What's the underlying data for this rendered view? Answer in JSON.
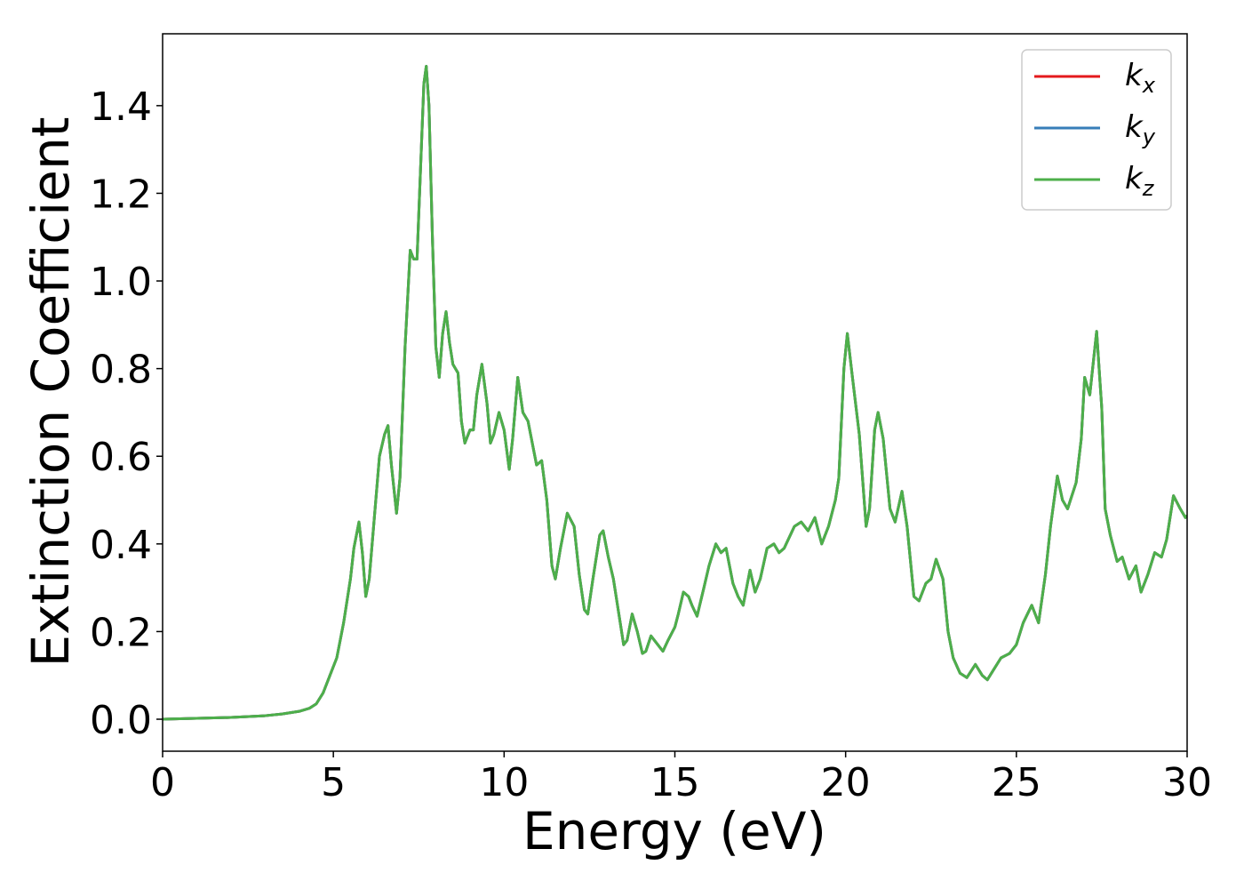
{
  "chart_data": {
    "type": "line",
    "xlabel": "Energy (eV)",
    "ylabel": "Extinction Coefficient",
    "x": [
      0,
      1,
      2,
      3,
      3.5,
      4,
      4.3,
      4.5,
      4.7,
      4.9,
      5.1,
      5.3,
      5.5,
      5.6,
      5.75,
      5.85,
      5.95,
      6.05,
      6.2,
      6.35,
      6.5,
      6.6,
      6.7,
      6.85,
      6.95,
      7.1,
      7.25,
      7.35,
      7.45,
      7.55,
      7.65,
      7.72,
      7.8,
      7.9,
      8.0,
      8.1,
      8.2,
      8.3,
      8.4,
      8.5,
      8.65,
      8.75,
      8.85,
      9.0,
      9.1,
      9.2,
      9.35,
      9.5,
      9.6,
      9.7,
      9.85,
      10.0,
      10.15,
      10.25,
      10.4,
      10.55,
      10.7,
      10.85,
      10.95,
      11.1,
      11.25,
      11.4,
      11.5,
      11.65,
      11.85,
      12.05,
      12.2,
      12.35,
      12.45,
      12.6,
      12.8,
      12.9,
      13.05,
      13.2,
      13.4,
      13.5,
      13.6,
      13.75,
      13.9,
      14.05,
      14.15,
      14.3,
      14.5,
      14.65,
      14.8,
      15.0,
      15.1,
      15.25,
      15.4,
      15.5,
      15.65,
      15.85,
      16.0,
      16.2,
      16.35,
      16.5,
      16.7,
      16.85,
      17.0,
      17.2,
      17.35,
      17.5,
      17.7,
      17.9,
      18.05,
      18.2,
      18.5,
      18.7,
      18.8,
      18.9,
      19.1,
      19.3,
      19.5,
      19.7,
      19.8,
      19.95,
      20.05,
      20.2,
      20.4,
      20.6,
      20.7,
      20.85,
      20.95,
      21.1,
      21.3,
      21.45,
      21.65,
      21.8,
      22.0,
      22.15,
      22.35,
      22.5,
      22.65,
      22.85,
      23.0,
      23.15,
      23.35,
      23.55,
      23.8,
      24.0,
      24.15,
      24.35,
      24.55,
      24.8,
      25.0,
      25.2,
      25.45,
      25.65,
      25.85,
      26.0,
      26.2,
      26.35,
      26.5,
      26.75,
      26.9,
      27.0,
      27.15,
      27.35,
      27.5,
      27.6,
      27.75,
      27.95,
      28.1,
      28.3,
      28.5,
      28.65,
      28.85,
      29.05,
      29.25,
      29.4,
      29.6,
      29.8,
      29.95,
      30
    ],
    "series": [
      {
        "name": "kx",
        "color": "#e41a1c",
        "values": [
          0,
          0.002,
          0.004,
          0.008,
          0.012,
          0.018,
          0.025,
          0.035,
          0.06,
          0.1,
          0.14,
          0.22,
          0.32,
          0.39,
          0.45,
          0.38,
          0.28,
          0.32,
          0.46,
          0.6,
          0.65,
          0.67,
          0.58,
          0.47,
          0.55,
          0.85,
          1.07,
          1.05,
          1.05,
          1.25,
          1.45,
          1.49,
          1.4,
          1.1,
          0.85,
          0.78,
          0.88,
          0.93,
          0.86,
          0.81,
          0.79,
          0.68,
          0.63,
          0.66,
          0.66,
          0.74,
          0.81,
          0.72,
          0.63,
          0.65,
          0.7,
          0.66,
          0.57,
          0.64,
          0.78,
          0.7,
          0.68,
          0.62,
          0.58,
          0.59,
          0.5,
          0.35,
          0.32,
          0.39,
          0.47,
          0.44,
          0.33,
          0.25,
          0.24,
          0.32,
          0.42,
          0.43,
          0.37,
          0.32,
          0.22,
          0.17,
          0.18,
          0.24,
          0.2,
          0.15,
          0.155,
          0.19,
          0.17,
          0.155,
          0.18,
          0.21,
          0.24,
          0.29,
          0.28,
          0.26,
          0.235,
          0.3,
          0.35,
          0.4,
          0.38,
          0.39,
          0.31,
          0.28,
          0.26,
          0.34,
          0.29,
          0.32,
          0.39,
          0.4,
          0.38,
          0.39,
          0.44,
          0.45,
          0.44,
          0.43,
          0.46,
          0.4,
          0.44,
          0.5,
          0.55,
          0.8,
          0.88,
          0.78,
          0.65,
          0.44,
          0.48,
          0.66,
          0.7,
          0.64,
          0.48,
          0.45,
          0.52,
          0.44,
          0.28,
          0.27,
          0.31,
          0.32,
          0.365,
          0.32,
          0.2,
          0.14,
          0.105,
          0.095,
          0.125,
          0.1,
          0.09,
          0.115,
          0.14,
          0.15,
          0.17,
          0.22,
          0.26,
          0.22,
          0.33,
          0.44,
          0.555,
          0.5,
          0.48,
          0.54,
          0.64,
          0.78,
          0.74,
          0.885,
          0.71,
          0.48,
          0.42,
          0.36,
          0.37,
          0.32,
          0.35,
          0.29,
          0.33,
          0.38,
          0.37,
          0.41,
          0.51,
          0.48,
          0.46,
          0.465
        ]
      },
      {
        "name": "ky",
        "color": "#377eb8",
        "values": [
          0,
          0.002,
          0.004,
          0.008,
          0.012,
          0.018,
          0.025,
          0.035,
          0.06,
          0.1,
          0.14,
          0.22,
          0.32,
          0.39,
          0.45,
          0.38,
          0.28,
          0.32,
          0.46,
          0.6,
          0.65,
          0.67,
          0.58,
          0.47,
          0.55,
          0.85,
          1.07,
          1.05,
          1.05,
          1.25,
          1.45,
          1.49,
          1.4,
          1.1,
          0.85,
          0.78,
          0.88,
          0.93,
          0.86,
          0.81,
          0.79,
          0.68,
          0.63,
          0.66,
          0.66,
          0.74,
          0.81,
          0.72,
          0.63,
          0.65,
          0.7,
          0.66,
          0.57,
          0.64,
          0.78,
          0.7,
          0.68,
          0.62,
          0.58,
          0.59,
          0.5,
          0.35,
          0.32,
          0.39,
          0.47,
          0.44,
          0.33,
          0.25,
          0.24,
          0.32,
          0.42,
          0.43,
          0.37,
          0.32,
          0.22,
          0.17,
          0.18,
          0.24,
          0.2,
          0.15,
          0.155,
          0.19,
          0.17,
          0.155,
          0.18,
          0.21,
          0.24,
          0.29,
          0.28,
          0.26,
          0.235,
          0.3,
          0.35,
          0.4,
          0.38,
          0.39,
          0.31,
          0.28,
          0.26,
          0.34,
          0.29,
          0.32,
          0.39,
          0.4,
          0.38,
          0.39,
          0.44,
          0.45,
          0.44,
          0.43,
          0.46,
          0.4,
          0.44,
          0.5,
          0.55,
          0.8,
          0.88,
          0.78,
          0.65,
          0.44,
          0.48,
          0.66,
          0.7,
          0.64,
          0.48,
          0.45,
          0.52,
          0.44,
          0.28,
          0.27,
          0.31,
          0.32,
          0.365,
          0.32,
          0.2,
          0.14,
          0.105,
          0.095,
          0.125,
          0.1,
          0.09,
          0.115,
          0.14,
          0.15,
          0.17,
          0.22,
          0.26,
          0.22,
          0.33,
          0.44,
          0.555,
          0.5,
          0.48,
          0.54,
          0.64,
          0.78,
          0.74,
          0.885,
          0.71,
          0.48,
          0.42,
          0.36,
          0.37,
          0.32,
          0.35,
          0.29,
          0.33,
          0.38,
          0.37,
          0.41,
          0.51,
          0.48,
          0.46,
          0.465
        ]
      },
      {
        "name": "kz",
        "color": "#4daf4a",
        "values": [
          0,
          0.002,
          0.004,
          0.008,
          0.012,
          0.018,
          0.025,
          0.035,
          0.06,
          0.1,
          0.14,
          0.22,
          0.32,
          0.39,
          0.45,
          0.38,
          0.28,
          0.32,
          0.46,
          0.6,
          0.65,
          0.67,
          0.58,
          0.47,
          0.55,
          0.85,
          1.07,
          1.05,
          1.05,
          1.25,
          1.45,
          1.49,
          1.4,
          1.1,
          0.85,
          0.78,
          0.88,
          0.93,
          0.86,
          0.81,
          0.79,
          0.68,
          0.63,
          0.66,
          0.66,
          0.74,
          0.81,
          0.72,
          0.63,
          0.65,
          0.7,
          0.66,
          0.57,
          0.64,
          0.78,
          0.7,
          0.68,
          0.62,
          0.58,
          0.59,
          0.5,
          0.35,
          0.32,
          0.39,
          0.47,
          0.44,
          0.33,
          0.25,
          0.24,
          0.32,
          0.42,
          0.43,
          0.37,
          0.32,
          0.22,
          0.17,
          0.18,
          0.24,
          0.2,
          0.15,
          0.155,
          0.19,
          0.17,
          0.155,
          0.18,
          0.21,
          0.24,
          0.29,
          0.28,
          0.26,
          0.235,
          0.3,
          0.35,
          0.4,
          0.38,
          0.39,
          0.31,
          0.28,
          0.26,
          0.34,
          0.29,
          0.32,
          0.39,
          0.4,
          0.38,
          0.39,
          0.44,
          0.45,
          0.44,
          0.43,
          0.46,
          0.4,
          0.44,
          0.5,
          0.55,
          0.8,
          0.88,
          0.78,
          0.65,
          0.44,
          0.48,
          0.66,
          0.7,
          0.64,
          0.48,
          0.45,
          0.52,
          0.44,
          0.28,
          0.27,
          0.31,
          0.32,
          0.365,
          0.32,
          0.2,
          0.14,
          0.105,
          0.095,
          0.125,
          0.1,
          0.09,
          0.115,
          0.14,
          0.15,
          0.17,
          0.22,
          0.26,
          0.22,
          0.33,
          0.44,
          0.555,
          0.5,
          0.48,
          0.54,
          0.64,
          0.78,
          0.74,
          0.885,
          0.71,
          0.48,
          0.42,
          0.36,
          0.37,
          0.32,
          0.35,
          0.29,
          0.33,
          0.38,
          0.37,
          0.41,
          0.51,
          0.48,
          0.46,
          0.465
        ]
      }
    ],
    "xlim": [
      0,
      30
    ],
    "xticks": [
      0,
      5,
      10,
      15,
      20,
      25,
      30
    ],
    "ylim": [
      -0.073,
      1.564
    ],
    "yticks": [
      {
        "value": 0,
        "label": "0.0"
      },
      {
        "value": 0.2,
        "label": "0.2"
      },
      {
        "value": 0.4,
        "label": "0.4"
      },
      {
        "value": 0.6,
        "label": "0.6"
      },
      {
        "value": 0.8,
        "label": "0.8"
      },
      {
        "value": 1.0,
        "label": "1.0"
      },
      {
        "value": 1.2,
        "label": "1.2"
      },
      {
        "value": 1.4,
        "label": "1.4"
      }
    ],
    "grid": false,
    "legend": "upper right"
  }
}
